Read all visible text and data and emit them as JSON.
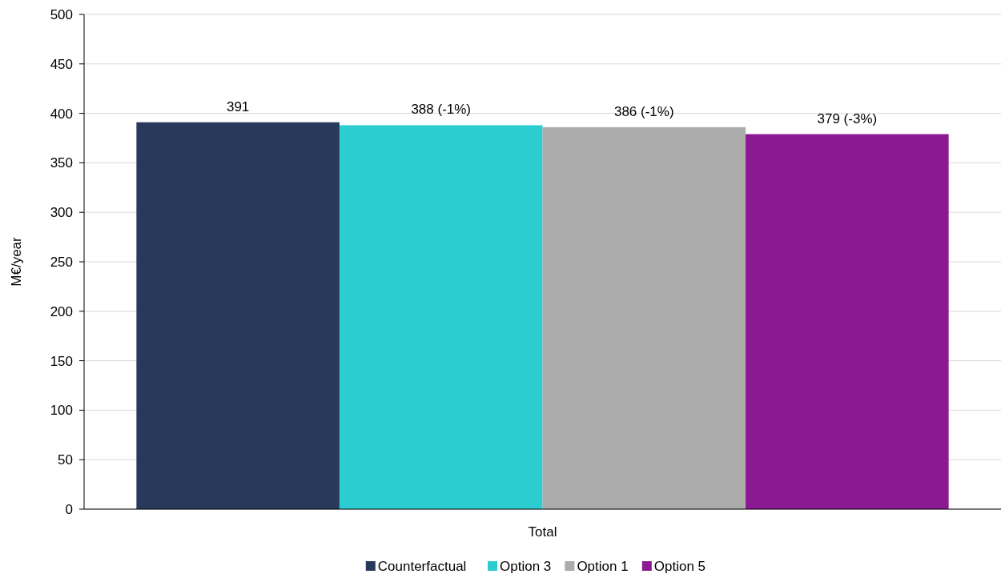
{
  "chart_data": {
    "type": "bar",
    "categories": [
      "Total"
    ],
    "ylabel": "M€/year",
    "series": [
      {
        "name": "Counterfactual",
        "color": "#283a5c",
        "values": [
          391
        ],
        "value_labels": [
          "391"
        ]
      },
      {
        "name": "Option 3",
        "color": "#2ccdd1",
        "values": [
          388
        ],
        "value_labels": [
          "388 (-1%)"
        ]
      },
      {
        "name": "Option 1",
        "color": "#ababab",
        "values": [
          386
        ],
        "value_labels": [
          "386 (-1%)"
        ]
      },
      {
        "name": "Option 5",
        "color": "#8b1a92",
        "values": [
          379
        ],
        "value_labels": [
          "379 (-3%)"
        ]
      }
    ],
    "ylim": [
      0,
      500
    ],
    "yticks": [
      0,
      50,
      100,
      150,
      200,
      250,
      300,
      350,
      400,
      450,
      500
    ],
    "grid": "y",
    "legend": "bottom"
  }
}
